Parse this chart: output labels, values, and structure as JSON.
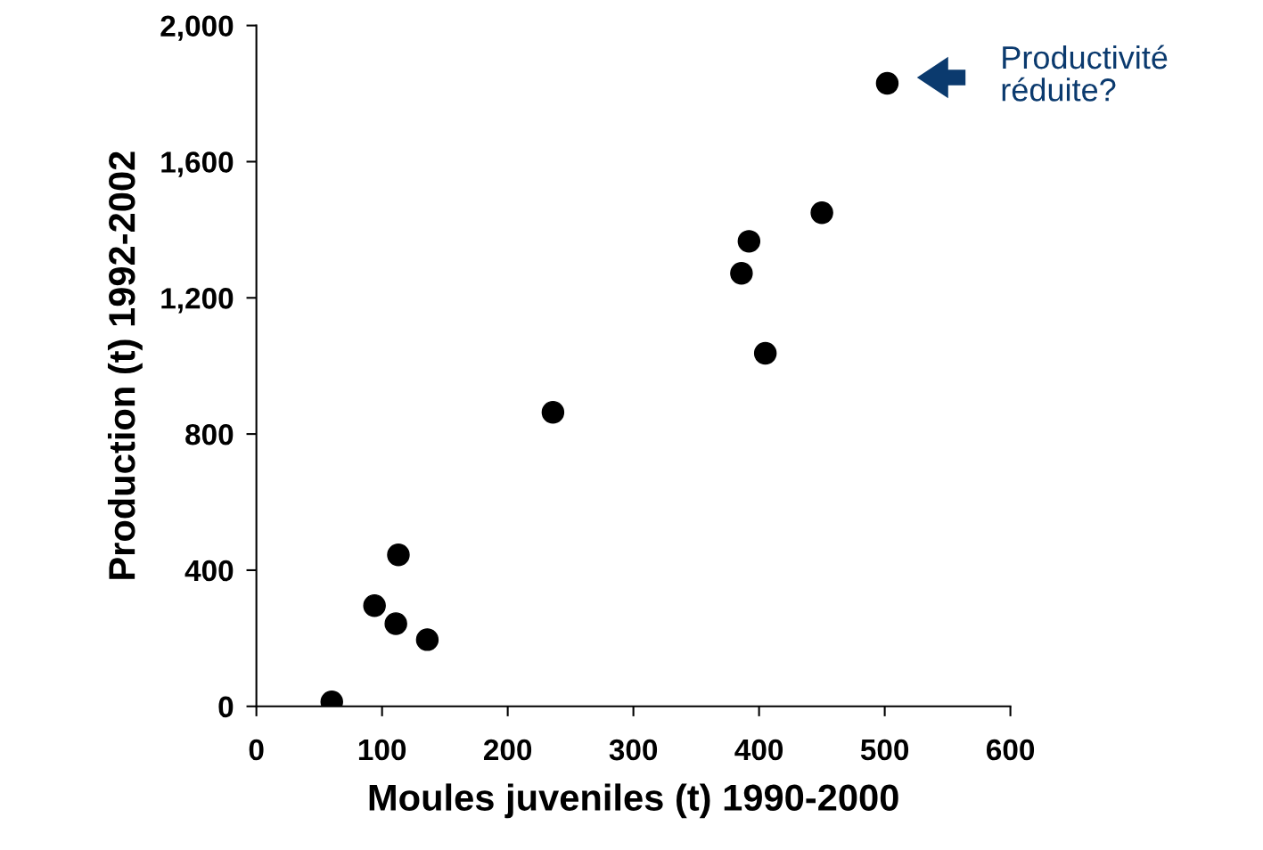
{
  "chart_data": {
    "type": "scatter",
    "xlabel": "Moules juveniles (t) 1990-2000",
    "ylabel": "Production (t) 1992-2002",
    "x": [
      60,
      94,
      113,
      111,
      136,
      236,
      386,
      392,
      405,
      450,
      502
    ],
    "values": [
      13,
      296,
      445,
      243,
      196,
      864,
      1272,
      1366,
      1037,
      1450,
      1830
    ],
    "color": "#000000",
    "marker": "circle",
    "xlim": [
      0,
      600
    ],
    "xticks": [
      0,
      100,
      200,
      300,
      400,
      500,
      600
    ],
    "ylim": [
      0,
      2000
    ],
    "yticks": [
      0,
      {
        "value": 400,
        "label": "400"
      },
      {
        "value": 800,
        "label": "800"
      },
      {
        "value": 1200,
        "label": "1,200"
      },
      {
        "value": 1600,
        "label": "1,600"
      },
      {
        "value": 2000,
        "label": "2,000"
      }
    ],
    "grid": false,
    "annotations": [
      "Productivité\nréduite?"
    ]
  }
}
